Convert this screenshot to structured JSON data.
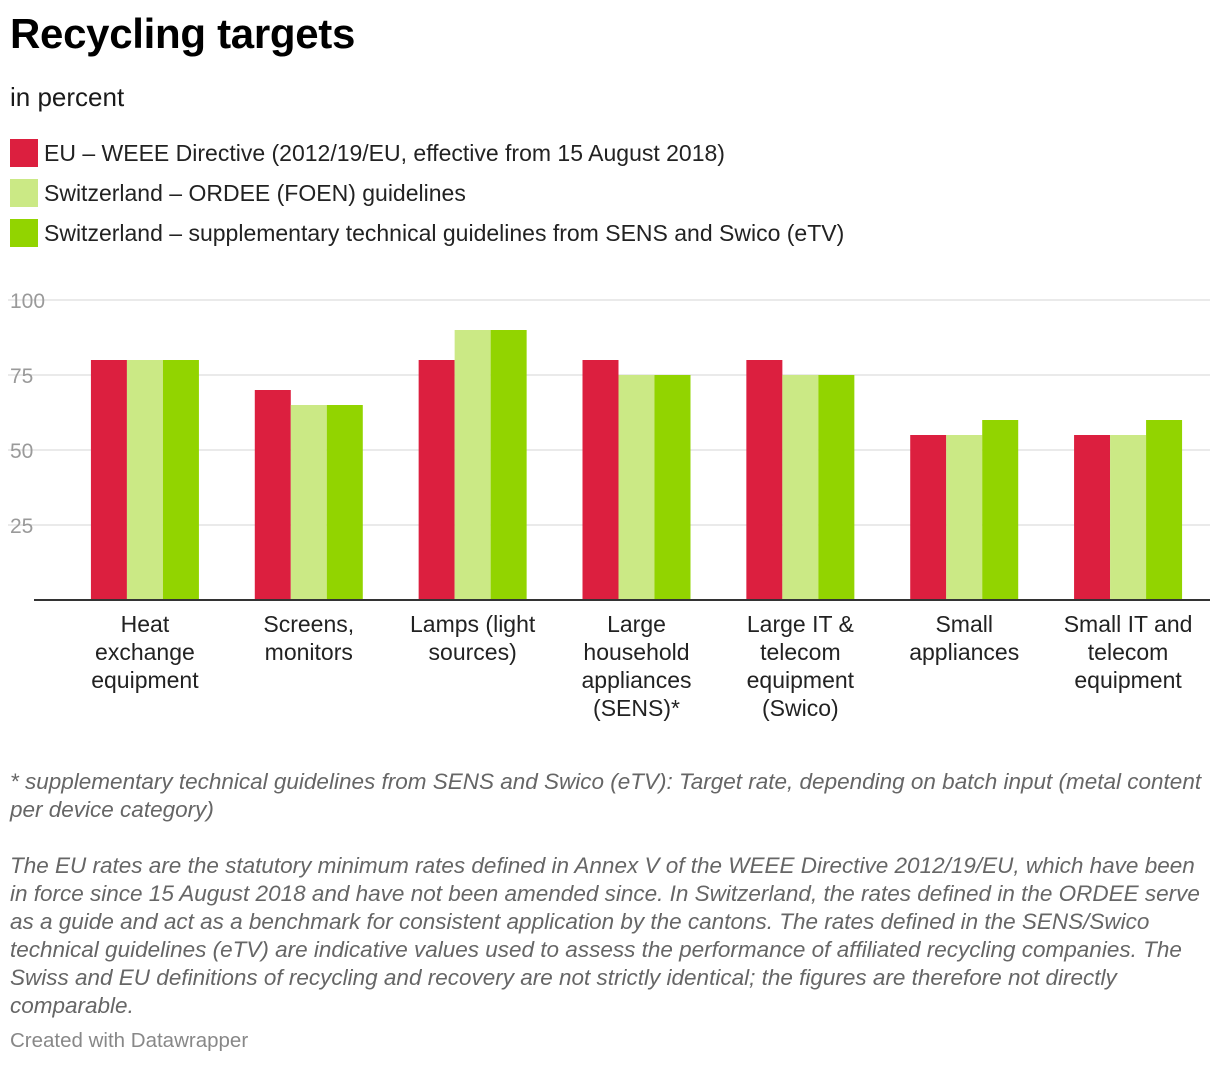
{
  "title": "Recycling targets",
  "subtitle": "in percent",
  "footnotes": [
    "*  supplementary technical guidelines from SENS and Swico (eTV): Target rate, depending on batch input (metal content per device category)",
    "The EU rates are the statutory minimum rates defined in Annex V of the WEEE Directive 2012/19/EU, which have been in force since 15 August 2018 and have not been amended since. In Switzerland, the rates defined in the ORDEE serve as a guide and act as a benchmark for consistent application by the cantons. The rates defined in the SENS/Swico technical guidelines (eTV) are indicative values used to assess the performance of affiliated recycling companies. The Swiss and EU definitions of recycling and recovery are not strictly identical; the figures are therefore not directly comparable."
  ],
  "credit": "Created with Datawrapper",
  "chart_data": {
    "type": "bar",
    "title": "Recycling targets",
    "subtitle": "in percent",
    "categories": [
      [
        "Heat",
        "exchange",
        "equipment"
      ],
      [
        "Screens,",
        "monitors"
      ],
      [
        "Lamps (light",
        "sources)"
      ],
      [
        "Large",
        "household",
        "appliances",
        "(SENS)*"
      ],
      [
        "Large IT &",
        "telecom",
        "equipment",
        "(Swico)"
      ],
      [
        "Small",
        "appliances"
      ],
      [
        "Small IT and",
        "telecom",
        "equipment"
      ]
    ],
    "series": [
      {
        "name": "EU – WEEE Directive (2012/19/EU, effective from 15 August 2018)",
        "color": "#dc1f3f",
        "values": [
          80,
          70,
          80,
          80,
          80,
          55,
          55
        ]
      },
      {
        "name": "Switzerland – ORDEE (FOEN) guidelines",
        "color": "#cbe985",
        "values": [
          80,
          65,
          90,
          75,
          75,
          55,
          55
        ]
      },
      {
        "name": "Switzerland – supplementary technical guidelines from SENS and Swico (eTV)",
        "color": "#92d400",
        "values": [
          80,
          65,
          90,
          75,
          75,
          60,
          60
        ]
      }
    ],
    "ylim": [
      0,
      100
    ],
    "yticks": [
      25,
      50,
      75,
      100
    ],
    "grid": true,
    "legend": "top-left"
  }
}
